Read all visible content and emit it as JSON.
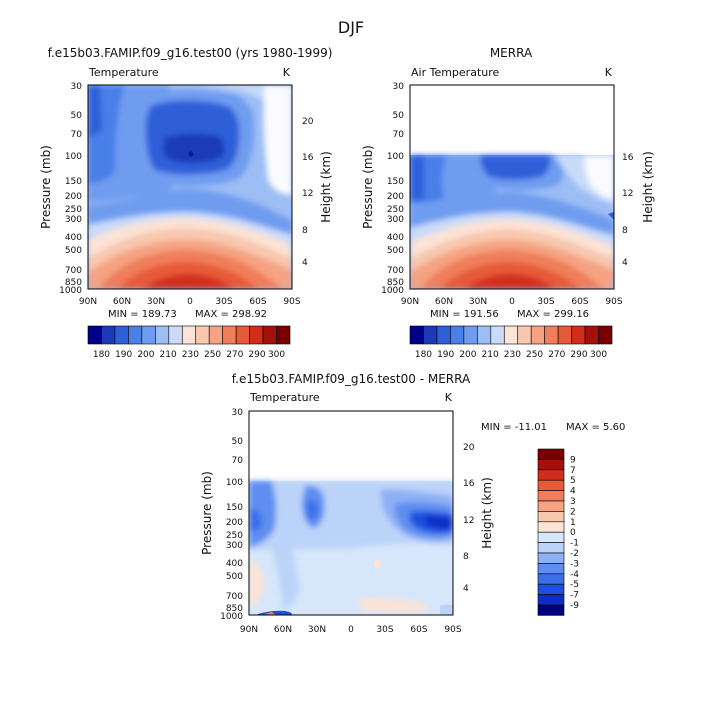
{
  "title": "DJF",
  "colors": {
    "temperature": [
      "#00008b",
      "#1b3ab8",
      "#2e5fd9",
      "#4a7fe8",
      "#6f9cf0",
      "#9dbdf5",
      "#c9dbf9",
      "#fbe3d6",
      "#f8c7ae",
      "#f5a382",
      "#f07e5a",
      "#e65a37",
      "#d12d1a",
      "#a6100c",
      "#7a0000"
    ],
    "difference": [
      "#000080",
      "#0b2ec6",
      "#1f4fe0",
      "#3b6ee9",
      "#5e8ef0",
      "#8eb0f5",
      "#bcd3f9",
      "#d6e6fb",
      "#fbe3d6",
      "#f8c7ae",
      "#f5a382",
      "#f07e5a",
      "#e65a37",
      "#d12d1a",
      "#a6100c",
      "#7a0000"
    ]
  },
  "chart_data": [
    {
      "type": "heatmap",
      "panel_title": "f.e15b03.FAMIP.f09_g16.test00 (yrs 1980-1999)",
      "left_label": "Temperature",
      "unit": "K",
      "ylabel": "Pressure (mb)",
      "ylabel_right": "Height (km)",
      "x_ticks": [
        "90N",
        "60N",
        "30N",
        "0",
        "30S",
        "60S",
        "90S"
      ],
      "y_ticks": [
        "30",
        "50",
        "70",
        "100",
        "150",
        "200",
        "250",
        "300",
        "400",
        "500",
        "700",
        "850",
        "1000"
      ],
      "height_ticks": [
        "20",
        "16",
        "12",
        "8",
        "4"
      ],
      "min_text": "MIN = 189.73",
      "max_text": "MAX = 298.92",
      "min": 189.73,
      "max": 298.92,
      "data_top_mb": 30
    },
    {
      "type": "heatmap",
      "panel_title": "MERRA",
      "left_label": "Air Temperature",
      "unit": "K",
      "ylabel": "Pressure (mb)",
      "ylabel_right": "Height (km)",
      "x_ticks": [
        "90N",
        "60N",
        "30N",
        "0",
        "30S",
        "60S",
        "90S"
      ],
      "y_ticks": [
        "30",
        "50",
        "70",
        "100",
        "150",
        "200",
        "250",
        "300",
        "400",
        "500",
        "700",
        "850",
        "1000"
      ],
      "height_ticks": [
        "16",
        "12",
        "8",
        "4"
      ],
      "min_text": "MIN = 191.56",
      "max_text": "MAX = 299.16",
      "min": 191.56,
      "max": 299.16,
      "data_top_mb": 100
    },
    {
      "type": "heatmap",
      "panel_title": "f.e15b03.FAMIP.f09_g16.test00 - MERRA",
      "left_label": "Temperature",
      "unit": "K",
      "ylabel": "Pressure (mb)",
      "ylabel_right": "Height (km)",
      "x_ticks": [
        "90N",
        "60N",
        "30N",
        "0",
        "30S",
        "60S",
        "90S"
      ],
      "y_ticks": [
        "30",
        "50",
        "70",
        "100",
        "150",
        "200",
        "250",
        "300",
        "400",
        "500",
        "700",
        "850",
        "1000"
      ],
      "height_ticks": [
        "20",
        "16",
        "12",
        "8",
        "4"
      ],
      "min_text": "MIN = -11.01",
      "max_text": "MAX =   5.60",
      "min": -11.01,
      "max": 5.6,
      "data_top_mb": 100
    }
  ],
  "colorbar_temperature": {
    "labels": [
      "180",
      "190",
      "200",
      "210",
      "230",
      "250",
      "270",
      "290",
      "300"
    ],
    "levels": [
      180,
      185,
      190,
      200,
      210,
      220,
      230,
      240,
      250,
      260,
      270,
      280,
      290,
      295,
      300
    ]
  },
  "colorbar_difference": {
    "labels": [
      "9",
      "7",
      "5",
      "4",
      "3",
      "2",
      "1",
      "0",
      "-1",
      "-2",
      "-3",
      "-4",
      "-5",
      "-7",
      "-9"
    ]
  }
}
